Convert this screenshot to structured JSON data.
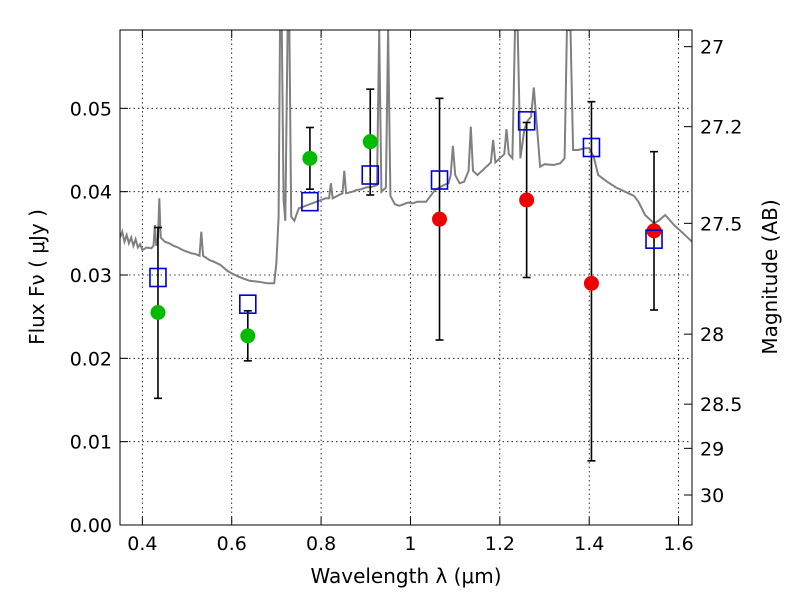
{
  "chart_data": {
    "type": "scatter",
    "xlabel": "Wavelength  λ (μm)",
    "ylabel": "Flux  Fν  ( μJy )",
    "y2label": "Magnitude (AB)",
    "xlim": [
      0.35,
      1.63
    ],
    "ylim": [
      0.0,
      0.0594
    ],
    "x_ticks": [
      0.4,
      0.6,
      0.8,
      1.0,
      1.2,
      1.4,
      1.6
    ],
    "x_tick_labels": [
      "0.4",
      "0.6",
      "0.8",
      "1",
      "1.2",
      "1.4",
      "1.6"
    ],
    "y_ticks": [
      0.0,
      0.01,
      0.02,
      0.03,
      0.04,
      0.05
    ],
    "y_tick_labels": [
      "0.00",
      "0.01",
      "0.02",
      "0.03",
      "0.04",
      "0.05"
    ],
    "y2_ticks": [
      {
        "label": "27",
        "flux": 0.0574
      },
      {
        "label": "27.2",
        "flux": 0.0478
      },
      {
        "label": "27.5",
        "flux": 0.0362
      },
      {
        "label": "28",
        "flux": 0.0229
      },
      {
        "label": "28.5",
        "flux": 0.0145
      },
      {
        "label": "29",
        "flux": 0.0092
      },
      {
        "label": "30",
        "flux": 0.0036
      }
    ],
    "grid": true,
    "colors": {
      "observed_hst": "#00bb00",
      "observed_ir": "#ee0000",
      "model": "#0000cc",
      "spectrum": "#808080"
    },
    "series": [
      {
        "marker": "circle-green",
        "points": [
          {
            "x": 0.435,
            "y": 0.0255,
            "ylo": 0.0152,
            "yhi": 0.0357
          },
          {
            "x": 0.636,
            "y": 0.0227,
            "ylo": 0.0197,
            "yhi": 0.0257
          },
          {
            "x": 0.775,
            "y": 0.044,
            "ylo": 0.0403,
            "yhi": 0.0477
          },
          {
            "x": 0.91,
            "y": 0.046,
            "ylo": 0.0396,
            "yhi": 0.0523
          }
        ]
      },
      {
        "marker": "circle-red",
        "points": [
          {
            "x": 1.065,
            "y": 0.0367,
            "ylo": 0.0222,
            "yhi": 0.0512
          },
          {
            "x": 1.26,
            "y": 0.039,
            "ylo": 0.0297,
            "yhi": 0.0483
          },
          {
            "x": 1.405,
            "y": 0.029,
            "ylo": 0.0077,
            "yhi": 0.0508
          },
          {
            "x": 1.545,
            "y": 0.0353,
            "ylo": 0.0258,
            "yhi": 0.0448
          }
        ]
      },
      {
        "marker": "open-square-blue",
        "points": [
          {
            "x": 0.435,
            "y": 0.0297
          },
          {
            "x": 0.636,
            "y": 0.0265
          },
          {
            "x": 0.775,
            "y": 0.0388
          },
          {
            "x": 0.91,
            "y": 0.042
          },
          {
            "x": 1.065,
            "y": 0.0414
          },
          {
            "x": 1.26,
            "y": 0.0485
          },
          {
            "x": 1.405,
            "y": 0.0453
          },
          {
            "x": 1.545,
            "y": 0.0343
          }
        ]
      }
    ],
    "spectrum": [
      [
        0.35,
        0.0345
      ],
      [
        0.355,
        0.0352
      ],
      [
        0.36,
        0.034
      ],
      [
        0.365,
        0.0348
      ],
      [
        0.37,
        0.0338
      ],
      [
        0.375,
        0.0345
      ],
      [
        0.38,
        0.0335
      ],
      [
        0.385,
        0.0343
      ],
      [
        0.39,
        0.0333
      ],
      [
        0.395,
        0.0337
      ],
      [
        0.4,
        0.033
      ],
      [
        0.41,
        0.0333
      ],
      [
        0.42,
        0.0332
      ],
      [
        0.425,
        0.0335
      ],
      [
        0.428,
        0.036
      ],
      [
        0.431,
        0.0335
      ],
      [
        0.435,
        0.0345
      ],
      [
        0.438,
        0.0392
      ],
      [
        0.441,
        0.0345
      ],
      [
        0.45,
        0.034
      ],
      [
        0.46,
        0.0338
      ],
      [
        0.47,
        0.0335
      ],
      [
        0.48,
        0.0333
      ],
      [
        0.49,
        0.033
      ],
      [
        0.5,
        0.0328
      ],
      [
        0.51,
        0.0326
      ],
      [
        0.52,
        0.0325
      ],
      [
        0.528,
        0.0323
      ],
      [
        0.532,
        0.0352
      ],
      [
        0.536,
        0.0323
      ],
      [
        0.55,
        0.0318
      ],
      [
        0.56,
        0.0316
      ],
      [
        0.575,
        0.0312
      ],
      [
        0.59,
        0.0305
      ],
      [
        0.6,
        0.0302
      ],
      [
        0.615,
        0.0298
      ],
      [
        0.63,
        0.0295
      ],
      [
        0.64,
        0.0293
      ],
      [
        0.66,
        0.0292
      ],
      [
        0.68,
        0.029
      ],
      [
        0.695,
        0.029
      ],
      [
        0.7,
        0.0315
      ],
      [
        0.705,
        0.037
      ],
      [
        0.708,
        0.0594
      ],
      [
        0.712,
        0.0594
      ],
      [
        0.716,
        0.039
      ],
      [
        0.72,
        0.0365
      ],
      [
        0.725,
        0.0594
      ],
      [
        0.729,
        0.0594
      ],
      [
        0.733,
        0.037
      ],
      [
        0.74,
        0.0365
      ],
      [
        0.75,
        0.038
      ],
      [
        0.76,
        0.0382
      ],
      [
        0.77,
        0.0384
      ],
      [
        0.78,
        0.0386
      ],
      [
        0.79,
        0.0388
      ],
      [
        0.8,
        0.039
      ],
      [
        0.81,
        0.0392
      ],
      [
        0.818,
        0.0392
      ],
      [
        0.822,
        0.041
      ],
      [
        0.826,
        0.0392
      ],
      [
        0.84,
        0.0396
      ],
      [
        0.848,
        0.0398
      ],
      [
        0.852,
        0.0425
      ],
      [
        0.856,
        0.0398
      ],
      [
        0.87,
        0.04
      ],
      [
        0.88,
        0.0402
      ],
      [
        0.89,
        0.0403
      ],
      [
        0.9,
        0.0405
      ],
      [
        0.915,
        0.0406
      ],
      [
        0.925,
        0.0408
      ],
      [
        0.93,
        0.0594
      ],
      [
        0.935,
        0.04
      ],
      [
        0.945,
        0.0405
      ],
      [
        0.95,
        0.0594
      ],
      [
        0.955,
        0.0395
      ],
      [
        0.965,
        0.0385
      ],
      [
        0.975,
        0.0383
      ],
      [
        0.985,
        0.0385
      ],
      [
        0.995,
        0.0387
      ],
      [
        1.005,
        0.0386
      ],
      [
        1.015,
        0.0388
      ],
      [
        1.025,
        0.0388
      ],
      [
        1.035,
        0.0388
      ],
      [
        1.045,
        0.0395
      ],
      [
        1.055,
        0.0402
      ],
      [
        1.065,
        0.0405
      ],
      [
        1.075,
        0.0408
      ],
      [
        1.085,
        0.041
      ],
      [
        1.09,
        0.042
      ],
      [
        1.095,
        0.0455
      ],
      [
        1.1,
        0.042
      ],
      [
        1.11,
        0.041
      ],
      [
        1.12,
        0.0412
      ],
      [
        1.13,
        0.0425
      ],
      [
        1.135,
        0.0478
      ],
      [
        1.14,
        0.0425
      ],
      [
        1.15,
        0.042
      ],
      [
        1.16,
        0.0425
      ],
      [
        1.17,
        0.043
      ],
      [
        1.18,
        0.0435
      ],
      [
        1.185,
        0.0462
      ],
      [
        1.19,
        0.0435
      ],
      [
        1.2,
        0.044
      ],
      [
        1.21,
        0.0445
      ],
      [
        1.215,
        0.0475
      ],
      [
        1.22,
        0.0445
      ],
      [
        1.228,
        0.044
      ],
      [
        1.234,
        0.0594
      ],
      [
        1.24,
        0.0594
      ],
      [
        1.246,
        0.044
      ],
      [
        1.255,
        0.0475
      ],
      [
        1.262,
        0.0485
      ],
      [
        1.27,
        0.049
      ],
      [
        1.276,
        0.0525
      ],
      [
        1.282,
        0.0485
      ],
      [
        1.29,
        0.043
      ],
      [
        1.3,
        0.0433
      ],
      [
        1.32,
        0.0432
      ],
      [
        1.335,
        0.0434
      ],
      [
        1.345,
        0.044
      ],
      [
        1.35,
        0.0594
      ],
      [
        1.358,
        0.0594
      ],
      [
        1.364,
        0.045
      ],
      [
        1.375,
        0.045
      ],
      [
        1.39,
        0.0452
      ],
      [
        1.4,
        0.0452
      ],
      [
        1.41,
        0.0442
      ],
      [
        1.42,
        0.042
      ],
      [
        1.44,
        0.0412
      ],
      [
        1.46,
        0.0405
      ],
      [
        1.48,
        0.04
      ],
      [
        1.5,
        0.0395
      ],
      [
        1.51,
        0.0388
      ],
      [
        1.525,
        0.0372
      ],
      [
        1.545,
        0.0362
      ],
      [
        1.555,
        0.0365
      ],
      [
        1.57,
        0.0372
      ],
      [
        1.59,
        0.036
      ],
      [
        1.61,
        0.035
      ],
      [
        1.63,
        0.034
      ]
    ]
  }
}
